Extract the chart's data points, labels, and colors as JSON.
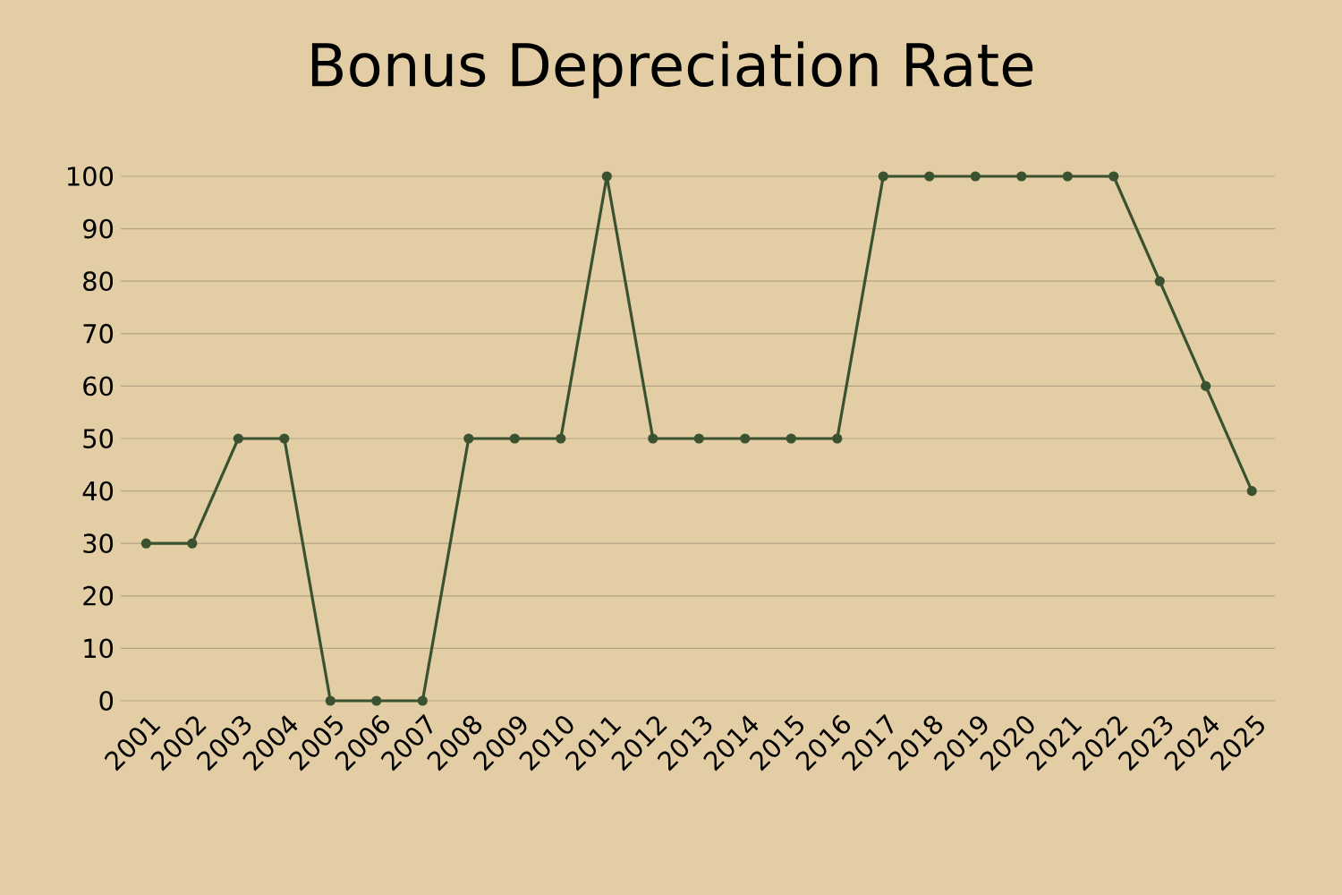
{
  "chart_data": {
    "type": "line",
    "title": "Bonus Depreciation Rate",
    "categories": [
      "2001",
      "2002",
      "2003",
      "2004",
      "2005",
      "2006",
      "2007",
      "2008",
      "2009",
      "2010",
      "2011",
      "2012",
      "2013",
      "2014",
      "2015",
      "2016",
      "2017",
      "2018",
      "2019",
      "2020",
      "2021",
      "2022",
      "2023",
      "2024",
      "2025"
    ],
    "values": [
      30,
      30,
      50,
      50,
      0,
      0,
      0,
      50,
      50,
      50,
      100,
      50,
      50,
      50,
      50,
      50,
      100,
      100,
      100,
      100,
      100,
      100,
      80,
      60,
      40
    ],
    "color": "#3b5230",
    "ylim": [
      0,
      100
    ],
    "yticks": [
      0,
      10,
      20,
      30,
      40,
      50,
      60,
      70,
      80,
      90,
      100
    ],
    "grid": "y",
    "marker": "circle",
    "line_style": "solid"
  }
}
